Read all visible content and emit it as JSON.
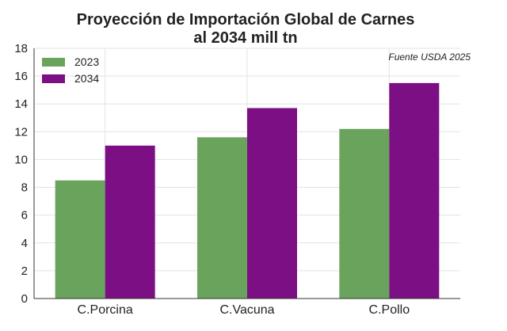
{
  "chart_data": {
    "type": "bar",
    "title_lines": [
      "Proyección de Importación Global de Carnes",
      "al 2034 mill tn"
    ],
    "annotation": "Fuente USDA 2025",
    "categories": [
      "C.Porcina",
      "C.Vacuna",
      "C.Pollo"
    ],
    "series": [
      {
        "name": "2023",
        "values": [
          8.5,
          11.6,
          12.2
        ],
        "color": "#6aa35c"
      },
      {
        "name": "2034",
        "values": [
          11.0,
          13.7,
          15.5
        ],
        "color": "#7b0f83"
      }
    ],
    "ylim": [
      0,
      18
    ],
    "yticks": [
      "0",
      "2",
      "4",
      "6",
      "8",
      "10",
      "12",
      "14",
      "16",
      "18"
    ],
    "grid": true,
    "legend_position": "top-left"
  }
}
